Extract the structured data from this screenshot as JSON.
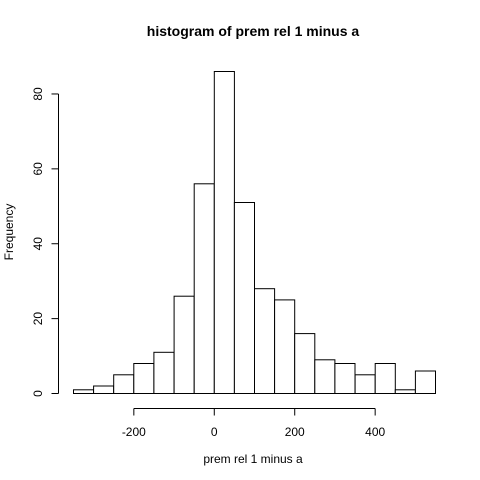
{
  "chart_data": {
    "type": "bar",
    "title": "histogram of prem rel 1 minus a",
    "xlabel": "prem rel 1 minus a",
    "ylabel": "Frequency",
    "bin_edges": [
      -350,
      -300,
      -250,
      -200,
      -150,
      -100,
      -50,
      0,
      50,
      100,
      150,
      200,
      250,
      300,
      350,
      400,
      450,
      500,
      550
    ],
    "values": [
      1,
      2,
      5,
      8,
      11,
      26,
      56,
      86,
      51,
      28,
      25,
      16,
      9,
      8,
      5,
      8,
      1,
      6
    ],
    "xlim": [
      -350,
      550
    ],
    "ylim": [
      0,
      86
    ],
    "x_ticks": [
      -200,
      0,
      200,
      400
    ],
    "y_ticks": [
      0,
      20,
      40,
      60,
      80
    ],
    "grid": false
  }
}
